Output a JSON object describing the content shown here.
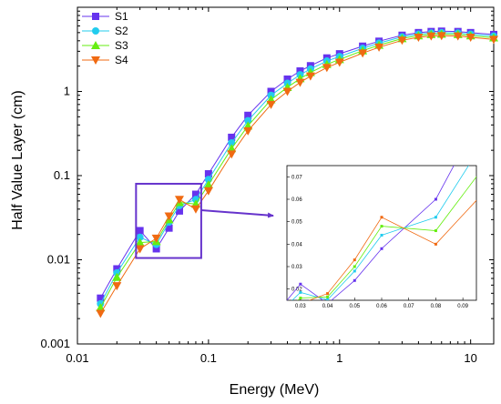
{
  "chart_data": [
    {
      "type": "line",
      "title": "",
      "xlabel": "Energy (MeV)",
      "ylabel": "Half Value Layer (cm)",
      "xscale": "log",
      "yscale": "log",
      "xlim": [
        0.01,
        15
      ],
      "ylim": [
        0.001,
        10
      ],
      "x_tick_labels": [
        "0.01",
        "0.1",
        "1",
        "10"
      ],
      "y_tick_labels": [
        "0.001",
        "0.01",
        "0.1",
        "1"
      ],
      "legend_position": "top-left",
      "x": [
        0.015,
        0.02,
        0.03,
        0.04,
        0.05,
        0.06,
        0.08,
        0.1,
        0.15,
        0.2,
        0.3,
        0.4,
        0.5,
        0.6,
        0.8,
        1,
        1.5,
        2,
        3,
        4,
        5,
        6,
        8,
        10,
        15
      ],
      "series": [
        {
          "name": "S1",
          "color": "#6633ee",
          "marker": "square",
          "values": [
            0.0035,
            0.0078,
            0.0222,
            0.0135,
            0.0238,
            0.038,
            0.06,
            0.105,
            0.285,
            0.52,
            1.0,
            1.4,
            1.75,
            2.02,
            2.5,
            2.8,
            3.45,
            3.95,
            4.65,
            5.0,
            5.15,
            5.2,
            5.15,
            5.0,
            4.75
          ]
        },
        {
          "name": "S2",
          "color": "#22ccee",
          "marker": "circle",
          "values": [
            0.003,
            0.007,
            0.0185,
            0.0152,
            0.028,
            0.044,
            0.052,
            0.09,
            0.245,
            0.45,
            0.9,
            1.25,
            1.58,
            1.85,
            2.3,
            2.6,
            3.25,
            3.75,
            4.45,
            4.8,
            4.95,
            5.0,
            4.95,
            4.8,
            4.55
          ]
        },
        {
          "name": "S3",
          "color": "#66ee11",
          "marker": "triangle-up",
          "values": [
            0.0027,
            0.0062,
            0.016,
            0.0165,
            0.03,
            0.048,
            0.046,
            0.078,
            0.21,
            0.39,
            0.8,
            1.12,
            1.42,
            1.68,
            2.1,
            2.4,
            3.05,
            3.55,
            4.25,
            4.6,
            4.75,
            4.8,
            4.75,
            4.6,
            4.35
          ]
        },
        {
          "name": "S4",
          "color": "#f06a12",
          "marker": "triangle-down",
          "values": [
            0.0023,
            0.0049,
            0.0135,
            0.018,
            0.033,
            0.052,
            0.04,
            0.066,
            0.18,
            0.34,
            0.7,
            1.0,
            1.28,
            1.52,
            1.92,
            2.22,
            2.85,
            3.35,
            4.05,
            4.4,
            4.55,
            4.6,
            4.55,
            4.4,
            4.15
          ]
        }
      ]
    },
    {
      "type": "line",
      "title": "",
      "xscale": "linear",
      "yscale": "linear",
      "xlim": [
        0.025,
        0.095
      ],
      "ylim": [
        0.015,
        0.075
      ],
      "x_tick_labels": [
        "0.03",
        "0.04",
        "0.05",
        "0.06",
        "0.07",
        "0.08",
        "0.09"
      ],
      "y_tick_labels": [
        "0.02",
        "0.03",
        "0.04",
        "0.05",
        "0.06",
        "0.07"
      ],
      "x": [
        0.02,
        0.03,
        0.04,
        0.05,
        0.06,
        0.08,
        0.1
      ],
      "series": [
        {
          "name": "S1",
          "color": "#6633ee",
          "values": [
            0.0078,
            0.0222,
            0.0135,
            0.0238,
            0.038,
            0.06,
            0.105
          ]
        },
        {
          "name": "S2",
          "color": "#22ccee",
          "values": [
            0.007,
            0.0185,
            0.0152,
            0.028,
            0.044,
            0.052,
            0.09
          ]
        },
        {
          "name": "S3",
          "color": "#66ee11",
          "values": [
            0.0062,
            0.016,
            0.0165,
            0.03,
            0.048,
            0.046,
            0.078
          ]
        },
        {
          "name": "S4",
          "color": "#f06a12",
          "values": [
            0.0049,
            0.0135,
            0.018,
            0.033,
            0.052,
            0.04,
            0.066
          ]
        }
      ]
    }
  ],
  "zoom_box": {
    "x_range": [
      0.028,
      0.088
    ],
    "y_range": [
      0.0105,
      0.08
    ],
    "color": "#6633cc"
  }
}
